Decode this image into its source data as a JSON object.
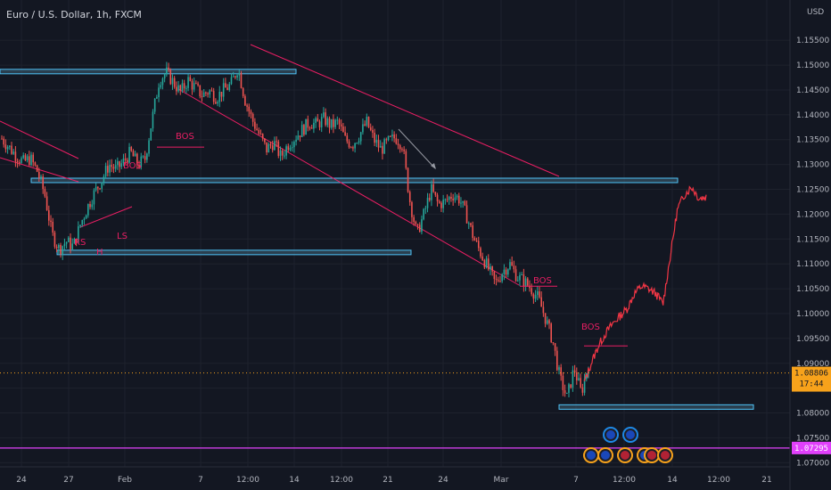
{
  "header": {
    "symbol_title": "Euro / U.S. Dollar, 1h, FXCM",
    "currency": "USD"
  },
  "colors": {
    "background": "#131722",
    "up": "#26a69a",
    "down": "#ef5350",
    "projection": "#f23645",
    "channel": "#e91e63",
    "zone_fill": "#3b5a6e",
    "zone_border": "#4fc3f7",
    "last_price": "#f7a21b",
    "horizontal_line": "#e040fb"
  },
  "chart_data": {
    "type": "candlestick",
    "title": "Euro / U.S. Dollar, 1h, FXCM",
    "ylim": [
      1.0645,
      1.1631
    ],
    "y_ticks": [
      "1.15500",
      "1.15000",
      "1.14500",
      "1.14000",
      "1.13500",
      "1.13000",
      "1.12500",
      "1.12000",
      "1.11500",
      "1.11000",
      "1.10500",
      "1.10000",
      "1.09500",
      "1.09000",
      "1.08500",
      "1.08000",
      "1.07500",
      "1.07000"
    ],
    "x_ticks": [
      "24",
      "27",
      "Feb",
      "7",
      "12:00",
      "14",
      "12:00",
      "21",
      "24",
      "Mar",
      "7",
      "12:00",
      "14",
      "12:00",
      "21"
    ],
    "price_path": [
      [
        "24",
        1.1352
      ],
      [
        "",
        1.1335
      ],
      [
        "",
        1.1318
      ],
      [
        "",
        1.1305
      ],
      [
        "",
        1.1312
      ],
      [
        "27",
        1.1285
      ],
      [
        "",
        1.124
      ],
      [
        "",
        1.116
      ],
      [
        "",
        1.113
      ],
      [
        "",
        1.1145
      ],
      [
        "",
        1.1135
      ],
      [
        "",
        1.118
      ],
      [
        "",
        1.1215
      ],
      [
        "",
        1.1245
      ],
      [
        "Feb",
        1.127
      ],
      [
        "",
        1.13
      ],
      [
        "",
        1.129
      ],
      [
        "",
        1.1305
      ],
      [
        "",
        1.1325
      ],
      [
        "",
        1.13
      ],
      [
        "",
        1.131
      ],
      [
        "",
        1.139
      ],
      [
        "",
        1.147
      ],
      [
        "",
        1.1485
      ],
      [
        "7",
        1.1465
      ],
      [
        "",
        1.1445
      ],
      [
        "",
        1.147
      ],
      [
        "",
        1.1455
      ],
      [
        "",
        1.144
      ],
      [
        "",
        1.1448
      ],
      [
        "12:00",
        1.1435
      ],
      [
        "",
        1.145
      ],
      [
        "",
        1.146
      ],
      [
        "",
        1.1495
      ],
      [
        "",
        1.143
      ],
      [
        "14",
        1.139
      ],
      [
        "",
        1.136
      ],
      [
        "",
        1.133
      ],
      [
        "",
        1.1345
      ],
      [
        "",
        1.1315
      ],
      [
        "",
        1.134
      ],
      [
        "",
        1.1355
      ],
      [
        "",
        1.137
      ],
      [
        "12:00",
        1.1385
      ],
      [
        "",
        1.138
      ],
      [
        "",
        1.1392
      ],
      [
        "",
        1.1378
      ],
      [
        "",
        1.1385
      ],
      [
        "",
        1.135
      ],
      [
        "21",
        1.134
      ],
      [
        "",
        1.136
      ],
      [
        "",
        1.1385
      ],
      [
        "",
        1.135
      ],
      [
        "",
        1.133
      ],
      [
        "",
        1.1345
      ],
      [
        "",
        1.1355
      ],
      [
        "",
        1.134
      ],
      [
        "24",
        1.123
      ],
      [
        "",
        1.116
      ],
      [
        "",
        1.12
      ],
      [
        "",
        1.125
      ],
      [
        "",
        1.122
      ],
      [
        "",
        1.1225
      ],
      [
        "",
        1.124
      ],
      [
        "",
        1.123
      ],
      [
        "",
        1.1195
      ],
      [
        "",
        1.115
      ],
      [
        "",
        1.112
      ],
      [
        "",
        1.109
      ],
      [
        "",
        1.106
      ],
      [
        "",
        1.1085
      ],
      [
        "",
        1.11
      ],
      [
        "",
        1.1075
      ],
      [
        "",
        1.1065
      ],
      [
        "",
        1.105
      ],
      [
        "",
        1.103
      ],
      [
        "Mar",
        1.099
      ],
      [
        "",
        1.0945
      ],
      [
        "7",
        1.087
      ],
      [
        "",
        1.083
      ],
      [
        "",
        1.089
      ],
      [
        "",
        1.084
      ],
      [
        "",
        1.09
      ]
    ],
    "projection_path": [
      [
        "",
        1.086
      ],
      [
        "",
        1.09
      ],
      [
        "",
        1.0935
      ],
      [
        "12:00",
        1.096
      ],
      [
        "",
        1.098
      ],
      [
        "",
        1.0995
      ],
      [
        "",
        1.101
      ],
      [
        "",
        1.104
      ],
      [
        "",
        1.1055
      ],
      [
        "",
        1.105
      ],
      [
        "",
        1.104
      ],
      [
        "14",
        1.102
      ],
      [
        "",
        1.1115
      ],
      [
        "",
        1.121
      ],
      [
        "",
        1.124
      ],
      [
        "",
        1.1255
      ],
      [
        "",
        1.1232
      ],
      [
        "",
        1.1235
      ]
    ],
    "last_price": {
      "value": 1.08806,
      "label": "1.08806",
      "countdown": "17:44"
    },
    "horizontal_line": {
      "value": 1.07295,
      "label": "1.07295"
    },
    "zones": [
      {
        "name": "top-zone",
        "value": 1.1487
      },
      {
        "name": "mid-zone",
        "value": 1.1268
      },
      {
        "name": "low-zone",
        "value": 1.1123
      },
      {
        "name": "bottom-zone",
        "value": 1.0812
      }
    ],
    "annotations": [
      {
        "name": "bos-1",
        "text": "BOS",
        "value": 1.1335
      },
      {
        "name": "bos-2",
        "text": "BOS",
        "value": 1.127
      },
      {
        "name": "bos-3",
        "text": "BOS",
        "value": 1.1055
      },
      {
        "name": "bos-4",
        "text": "BOS",
        "value": 1.0935
      },
      {
        "name": "rs-label",
        "text": "RS",
        "value": 1.112
      },
      {
        "name": "ls-label",
        "text": "LS",
        "value": 1.113
      },
      {
        "name": "h-label",
        "text": "H",
        "value": 1.1105
      }
    ]
  }
}
